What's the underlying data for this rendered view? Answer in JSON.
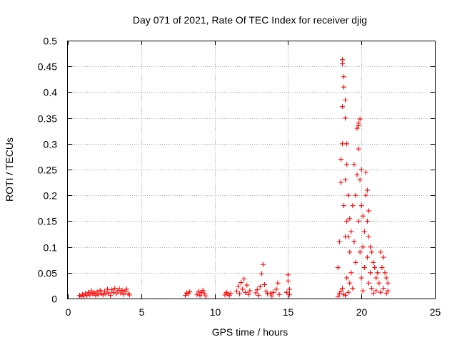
{
  "chart_data": {
    "type": "scatter",
    "title": "Day 071 of 2021, Rate Of TEC Index for receiver djig",
    "xlabel": "GPS time / hours",
    "ylabel": "ROTI / TECUs",
    "xlim": [
      0,
      25
    ],
    "ylim": [
      0,
      0.5
    ],
    "xticks": [
      "0",
      "5",
      "10",
      "15",
      "20",
      "25"
    ],
    "yticks": [
      "0",
      "0.05",
      "0.1",
      "0.15",
      "0.2",
      "0.25",
      "0.3",
      "0.35",
      "0.4",
      "0.45",
      "0.5"
    ],
    "grid": true,
    "marker": "+",
    "marker_color": "#ff0000",
    "series": [
      {
        "name": "ROTI",
        "points": [
          [
            0.8,
            0.006
          ],
          [
            0.9,
            0.004
          ],
          [
            1.0,
            0.008
          ],
          [
            1.1,
            0.005
          ],
          [
            1.2,
            0.01
          ],
          [
            1.3,
            0.006
          ],
          [
            1.4,
            0.012
          ],
          [
            1.5,
            0.007
          ],
          [
            1.6,
            0.015
          ],
          [
            1.7,
            0.009
          ],
          [
            1.8,
            0.011
          ],
          [
            1.9,
            0.006
          ],
          [
            2.0,
            0.013
          ],
          [
            2.1,
            0.008
          ],
          [
            2.2,
            0.016
          ],
          [
            2.3,
            0.01
          ],
          [
            2.4,
            0.007
          ],
          [
            2.5,
            0.014
          ],
          [
            2.6,
            0.009
          ],
          [
            2.7,
            0.018
          ],
          [
            2.8,
            0.011
          ],
          [
            2.9,
            0.006
          ],
          [
            3.0,
            0.017
          ],
          [
            3.1,
            0.012
          ],
          [
            3.2,
            0.02
          ],
          [
            3.3,
            0.009
          ],
          [
            3.4,
            0.015
          ],
          [
            3.5,
            0.019
          ],
          [
            3.6,
            0.011
          ],
          [
            3.7,
            0.016
          ],
          [
            3.8,
            0.008
          ],
          [
            3.9,
            0.014
          ],
          [
            4.0,
            0.018
          ],
          [
            4.1,
            0.01
          ],
          [
            4.2,
            0.007
          ],
          [
            8.0,
            0.006
          ],
          [
            8.1,
            0.011
          ],
          [
            8.2,
            0.009
          ],
          [
            8.3,
            0.013
          ],
          [
            8.8,
            0.008
          ],
          [
            8.9,
            0.014
          ],
          [
            9.0,
            0.006
          ],
          [
            9.1,
            0.012
          ],
          [
            9.2,
            0.016
          ],
          [
            9.3,
            0.009
          ],
          [
            9.4,
            0.005
          ],
          [
            10.7,
            0.007
          ],
          [
            10.8,
            0.012
          ],
          [
            10.9,
            0.009
          ],
          [
            11.0,
            0.006
          ],
          [
            11.1,
            0.01
          ],
          [
            11.5,
            0.014
          ],
          [
            11.6,
            0.024
          ],
          [
            11.7,
            0.009
          ],
          [
            11.8,
            0.031
          ],
          [
            11.9,
            0.018
          ],
          [
            12.0,
            0.038
          ],
          [
            12.1,
            0.012
          ],
          [
            12.2,
            0.026
          ],
          [
            12.3,
            0.008
          ],
          [
            12.4,
            0.015
          ],
          [
            12.8,
            0.011
          ],
          [
            12.9,
            0.017
          ],
          [
            13.0,
            0.006
          ],
          [
            13.1,
            0.023
          ],
          [
            13.2,
            0.048
          ],
          [
            13.3,
            0.066
          ],
          [
            13.4,
            0.027
          ],
          [
            13.5,
            0.014
          ],
          [
            13.6,
            0.009
          ],
          [
            13.8,
            0.01
          ],
          [
            13.9,
            0.005
          ],
          [
            14.0,
            0.012
          ],
          [
            14.2,
            0.018
          ],
          [
            14.3,
            0.03
          ],
          [
            14.4,
            0.008
          ],
          [
            14.9,
            0.012
          ],
          [
            15.0,
            0.034
          ],
          [
            15.0,
            0.046
          ],
          [
            15.1,
            0.008
          ],
          [
            15.1,
            0.018
          ],
          [
            18.4,
            0.004
          ],
          [
            18.4,
            0.06
          ],
          [
            18.5,
            0.11
          ],
          [
            18.5,
            0.01
          ],
          [
            18.6,
            0.225
          ],
          [
            18.6,
            0.27
          ],
          [
            18.6,
            0.014
          ],
          [
            18.7,
            0.372
          ],
          [
            18.7,
            0.463
          ],
          [
            18.7,
            0.455
          ],
          [
            18.7,
            0.3
          ],
          [
            18.7,
            0.02
          ],
          [
            18.8,
            0.43
          ],
          [
            18.8,
            0.41
          ],
          [
            18.8,
            0.18
          ],
          [
            18.8,
            0.008
          ],
          [
            18.9,
            0.385
          ],
          [
            18.9,
            0.35
          ],
          [
            18.9,
            0.23
          ],
          [
            18.9,
            0.12
          ],
          [
            18.9,
            0.006
          ],
          [
            19.0,
            0.3
          ],
          [
            19.0,
            0.26
          ],
          [
            19.0,
            0.15
          ],
          [
            19.0,
            0.04
          ],
          [
            19.1,
            0.2
          ],
          [
            19.1,
            0.12
          ],
          [
            19.1,
            0.012
          ],
          [
            19.2,
            0.155
          ],
          [
            19.2,
            0.09
          ],
          [
            19.2,
            0.03
          ],
          [
            19.3,
            0.13
          ],
          [
            19.3,
            0.05
          ],
          [
            19.4,
            0.18
          ],
          [
            19.4,
            0.02
          ],
          [
            19.5,
            0.26
          ],
          [
            19.5,
            0.11
          ],
          [
            19.6,
            0.2
          ],
          [
            19.6,
            0.07
          ],
          [
            19.7,
            0.24
          ],
          [
            19.7,
            0.33
          ],
          [
            19.8,
            0.335
          ],
          [
            19.8,
            0.34
          ],
          [
            19.8,
            0.29
          ],
          [
            19.8,
            0.15
          ],
          [
            19.9,
            0.348
          ],
          [
            19.9,
            0.23
          ],
          [
            19.9,
            0.09
          ],
          [
            20.0,
            0.25
          ],
          [
            20.0,
            0.18
          ],
          [
            20.0,
            0.04
          ],
          [
            20.1,
            0.16
          ],
          [
            20.1,
            0.1
          ],
          [
            20.1,
            0.015
          ],
          [
            20.2,
            0.13
          ],
          [
            20.2,
            0.06
          ],
          [
            20.3,
            0.245
          ],
          [
            20.3,
            0.2
          ],
          [
            20.4,
            0.21
          ],
          [
            20.4,
            0.15
          ],
          [
            20.4,
            0.08
          ],
          [
            20.5,
            0.17
          ],
          [
            20.5,
            0.12
          ],
          [
            20.5,
            0.03
          ],
          [
            20.6,
            0.1
          ],
          [
            20.6,
            0.05
          ],
          [
            20.7,
            0.09
          ],
          [
            20.7,
            0.02
          ],
          [
            20.8,
            0.07
          ],
          [
            20.8,
            0.01
          ],
          [
            20.9,
            0.06
          ],
          [
            21.0,
            0.04
          ],
          [
            21.0,
            0.015
          ],
          [
            21.1,
            0.05
          ],
          [
            21.2,
            0.03
          ],
          [
            21.3,
            0.09
          ],
          [
            21.3,
            0.012
          ],
          [
            21.4,
            0.06
          ],
          [
            21.5,
            0.08
          ],
          [
            21.5,
            0.02
          ],
          [
            21.6,
            0.05
          ],
          [
            21.7,
            0.04
          ],
          [
            21.7,
            0.01
          ],
          [
            21.8,
            0.03
          ],
          [
            21.8,
            0.015
          ]
        ]
      }
    ]
  }
}
